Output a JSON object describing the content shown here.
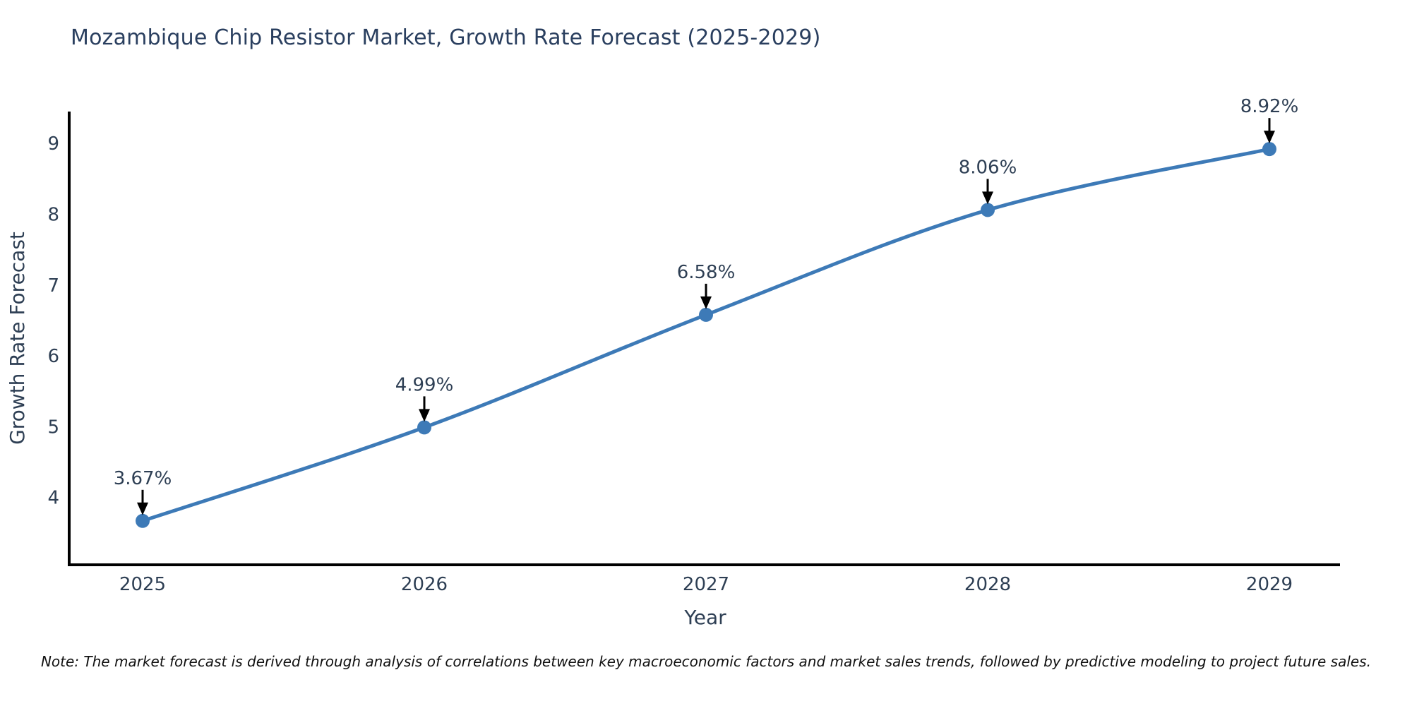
{
  "title": "Mozambique Chip Resistor Market, Growth Rate Forecast (2025-2029)",
  "note": "Note: The market forecast is derived through analysis of correlations between key macroeconomic factors and market sales trends, followed by predictive modeling to project future sales.",
  "colors": {
    "title_text": "#2a3f5f",
    "tick_text": "#2e3f54",
    "axis_line": "#000000",
    "series_line": "#3d7ab7",
    "marker_fill": "#3d7ab7",
    "annotation_text": "#2e3f54",
    "annotation_arrow": "#000000",
    "note_text": "#111111",
    "background": "#ffffff"
  },
  "chart_data": {
    "type": "line",
    "title": "Mozambique Chip Resistor Market, Growth Rate Forecast (2025-2029)",
    "xlabel": "Year",
    "ylabel": "Growth Rate Forecast",
    "x": [
      2025,
      2026,
      2027,
      2028,
      2029
    ],
    "categories": [
      "2025",
      "2026",
      "2027",
      "2028",
      "2029"
    ],
    "series": [
      {
        "name": "Growth Rate Forecast",
        "values": [
          3.67,
          4.99,
          6.58,
          8.06,
          8.92
        ],
        "point_labels": [
          "3.67%",
          "4.99%",
          "6.58%",
          "8.06%",
          "8.92%"
        ]
      }
    ],
    "yticks": [
      4,
      5,
      6,
      7,
      8,
      9
    ],
    "ylim": [
      3.05,
      9.45
    ],
    "xlim": [
      2024.74,
      2029.25
    ],
    "grid": false,
    "legend": false,
    "annotations": "value labels with downward arrows above each point",
    "line_smoothing": true
  }
}
